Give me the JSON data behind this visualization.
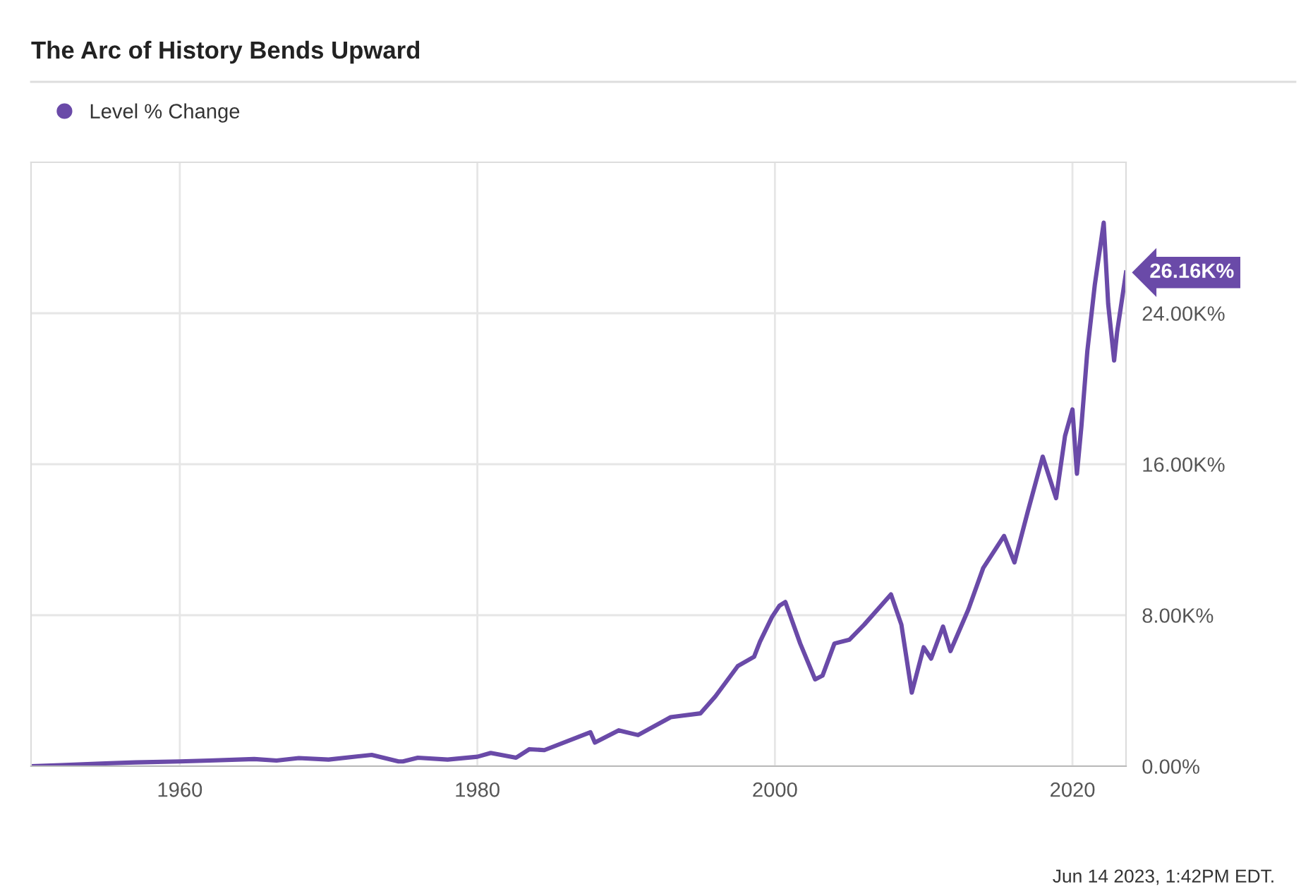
{
  "chart_data": {
    "type": "line",
    "title": "The Arc of History Bends Upward",
    "x": [
      1950.0,
      1952,
      1955,
      1957,
      1960,
      1962,
      1965,
      1966.5,
      1968,
      1970,
      1972.9,
      1974.7,
      1975.0,
      1976,
      1978,
      1980.0,
      1980.9,
      1982.6,
      1983.5,
      1984.5,
      1987.6,
      1987.9,
      1989.5,
      1990.8,
      1993,
      1995,
      1996,
      1997.5,
      1998.6,
      1999.0,
      1999.8,
      2000.3,
      2000.7,
      2001.7,
      2002.7,
      2003.2,
      2004,
      2005,
      2006,
      2007.8,
      2008.5,
      2009.2,
      2010,
      2010.5,
      2011.3,
      2011.8,
      2013,
      2014,
      2015.4,
      2016.1,
      2017,
      2018.0,
      2018.9,
      2019.5,
      2020.0,
      2020.3,
      2020.6,
      2021,
      2021.5,
      2022.1,
      2022.4,
      2022.8,
      2023.0,
      2023.6
    ],
    "series": [
      {
        "name": "Level % Change",
        "color": "#6a4aa8",
        "values": [
          0,
          50,
          150,
          200,
          250,
          300,
          380,
          300,
          430,
          350,
          600,
          250,
          250,
          450,
          350,
          500,
          700,
          450,
          900,
          850,
          1800,
          1250,
          1900,
          1650,
          2600,
          2800,
          3700,
          5300,
          5800,
          6600,
          7900,
          8500,
          8700,
          6500,
          4600,
          4800,
          6500,
          6700,
          7500,
          9100,
          7500,
          3900,
          6300,
          5700,
          7400,
          6100,
          8300,
          10500,
          12200,
          10800,
          13500,
          16400,
          14200,
          17500,
          18900,
          15500,
          18000,
          22000,
          25500,
          28800,
          24500,
          21500,
          23000,
          26160
        ],
        "value_labels": [
          null,
          null,
          null,
          null,
          null,
          null,
          null,
          null,
          null,
          null,
          null,
          null,
          null,
          null,
          null,
          null,
          null,
          null,
          null,
          null,
          null,
          null,
          null,
          null,
          null,
          null,
          null,
          null,
          null,
          null,
          null,
          null,
          null,
          null,
          null,
          null,
          null,
          null,
          null,
          null,
          null,
          null,
          null,
          null,
          null,
          null,
          null,
          null,
          null,
          null,
          null,
          null,
          null,
          null,
          null,
          null,
          null,
          null,
          null,
          null,
          null,
          null,
          null,
          "26.16K%"
        ]
      }
    ],
    "xlim": [
      1950,
      2023.6
    ],
    "xticks": [
      1960,
      1980,
      2000,
      2020
    ],
    "ylim": [
      0,
      32000
    ],
    "yticks": [
      {
        "value": 0,
        "label": "0.00%"
      },
      {
        "value": 8000,
        "label": "8.00K%"
      },
      {
        "value": 16000,
        "label": "16.00K%"
      },
      {
        "value": 24000,
        "label": "24.00K%"
      }
    ],
    "grid": true,
    "legend": "top left",
    "marker": "none",
    "line_style": "solid",
    "annotations": [
      "Jun 14 2023, 1:42PM EDT."
    ]
  }
}
